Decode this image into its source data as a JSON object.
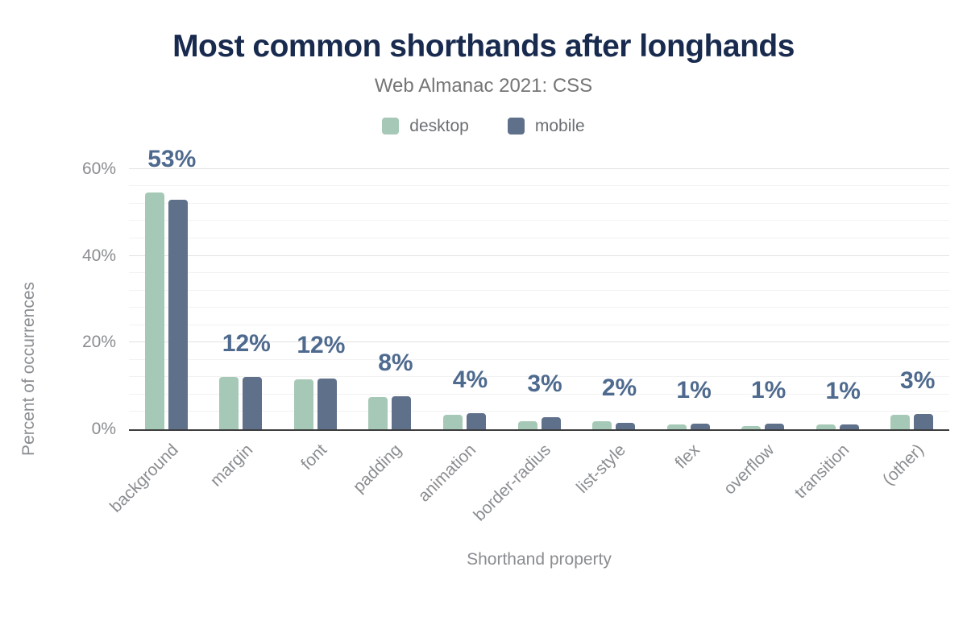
{
  "chart_data": {
    "type": "bar",
    "title": "Most common shorthands after longhands",
    "subtitle": "Web Almanac 2021: CSS",
    "xlabel": "Shorthand property",
    "ylabel": "Percent of occurrences",
    "categories": [
      "background",
      "margin",
      "font",
      "padding",
      "animation",
      "border-radius",
      "list-style",
      "flex",
      "overflow",
      "transition",
      "(other)"
    ],
    "series": [
      {
        "name": "desktop",
        "color": "#a6c9b7",
        "values": [
          54.5,
          12.0,
          11.4,
          7.4,
          3.4,
          1.9,
          1.9,
          1.1,
          0.8,
          1.0,
          3.3
        ]
      },
      {
        "name": "mobile",
        "color": "#5f708b",
        "values": [
          53.0,
          12.0,
          11.7,
          7.6,
          3.6,
          2.7,
          1.5,
          1.3,
          1.3,
          1.0,
          3.5
        ]
      }
    ],
    "bar_labels": [
      "53%",
      "12%",
      "12%",
      "8%",
      "4%",
      "3%",
      "2%",
      "1%",
      "1%",
      "1%",
      "3%"
    ],
    "y_ticks": [
      {
        "label": "0%",
        "value": 0
      },
      {
        "label": "20%",
        "value": 20
      },
      {
        "label": "40%",
        "value": 40
      },
      {
        "label": "60%",
        "value": 60
      }
    ],
    "ylim": [
      0,
      60
    ],
    "minor_grid_step": 4,
    "major_grid_step": 20,
    "grid": true,
    "legend_position": "top"
  },
  "colors": {
    "title": "#182a4e",
    "subtitle": "#757575",
    "axis_text": "#8a8d91",
    "bar_label": "#4e6a8e",
    "minor_gridline": "#f2f2f2",
    "major_gridline": "#e2e2e2",
    "axis_line": "#3d3d3d",
    "background": "#ffffff"
  }
}
